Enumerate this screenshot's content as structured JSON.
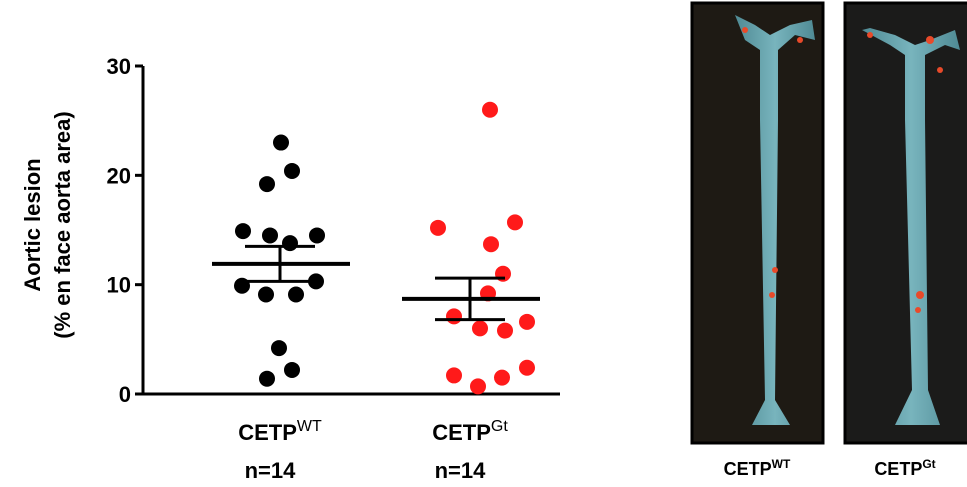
{
  "chart_data": {
    "type": "scatter",
    "ylabel": [
      "Aortic lesion",
      "(% en face aorta area)"
    ],
    "ylim": [
      0,
      30
    ],
    "yticks": [
      0,
      10,
      20,
      30
    ],
    "groups": [
      {
        "name": "CETP",
        "superscript": "WT",
        "n_label": "n=14",
        "color": "#000000",
        "values": [
          23.0,
          19.2,
          20.4,
          14.9,
          14.5,
          14.5,
          13.8,
          9.9,
          9.1,
          9.1,
          10.3,
          4.2,
          1.4,
          2.2
        ],
        "mean": 11.9,
        "sem": 1.6
      },
      {
        "name": "CETP",
        "superscript": "Gt",
        "n_label": "n=14",
        "color": "#ff1a1a",
        "values": [
          26.0,
          15.2,
          15.7,
          13.7,
          11.0,
          9.2,
          7.1,
          6.0,
          6.6,
          5.8,
          1.7,
          0.7,
          1.5,
          2.4
        ],
        "mean": 8.7,
        "sem": 1.9
      }
    ],
    "images": [
      {
        "name": "CETP",
        "superscript": "WT"
      },
      {
        "name": "CETP",
        "superscript": "Gt"
      }
    ]
  }
}
